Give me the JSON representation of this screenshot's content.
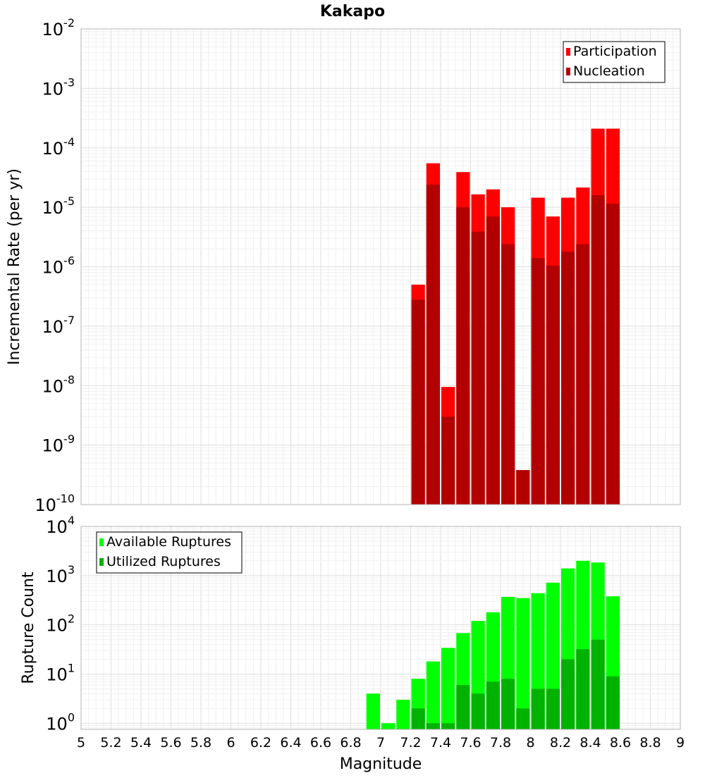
{
  "chart_data": [
    {
      "type": "bar",
      "title": "Kakapo",
      "xlabel": "",
      "ylabel": "Incremental Rate (per yr)",
      "yscale": "log",
      "ylim": [
        1e-10,
        0.01
      ],
      "xlim": [
        5,
        9
      ],
      "y_tick_labels": [
        {
          "base": "10",
          "exp": "-10"
        },
        {
          "base": "10",
          "exp": "-9"
        },
        {
          "base": "10",
          "exp": "-8"
        },
        {
          "base": "10",
          "exp": "-7"
        },
        {
          "base": "10",
          "exp": "-6"
        },
        {
          "base": "10",
          "exp": "-5"
        },
        {
          "base": "10",
          "exp": "-4"
        },
        {
          "base": "10",
          "exp": "-3"
        },
        {
          "base": "10",
          "exp": "-2"
        }
      ],
      "grid": true,
      "legend_position": "top-right",
      "bar_width": 0.1,
      "x": [
        7.25,
        7.35,
        7.45,
        7.55,
        7.65,
        7.75,
        7.85,
        7.95,
        8.05,
        8.15,
        8.25,
        8.35,
        8.45,
        8.55
      ],
      "series": [
        {
          "name": "Participation",
          "color": "#ff0000",
          "values": [
            5e-07,
            5.5e-05,
            9.5e-09,
            3.9e-05,
            1.65e-05,
            2e-05,
            1e-05,
            3.8e-10,
            1.45e-05,
            7e-06,
            1.45e-05,
            2.15e-05,
            0.00021,
            0.00021
          ]
        },
        {
          "name": "Nucleation",
          "color": "#b20000",
          "values": [
            2.8e-07,
            2.4e-05,
            3e-09,
            1e-05,
            3.9e-06,
            7e-06,
            2.4e-06,
            3.8e-10,
            1.4e-06,
            1.05e-06,
            1.8e-06,
            2.4e-06,
            1.6e-05,
            1.15e-05
          ]
        }
      ]
    },
    {
      "type": "bar",
      "title": "",
      "xlabel": "Magnitude",
      "ylabel": "Rupture Count",
      "yscale": "log",
      "ylim": [
        0.75,
        10000
      ],
      "xlim": [
        5,
        9
      ],
      "x_tick_labels": [
        "5",
        "5.2",
        "5.4",
        "5.6",
        "5.8",
        "6",
        "6.2",
        "6.4",
        "6.6",
        "6.8",
        "7",
        "7.2",
        "7.4",
        "7.6",
        "7.8",
        "8",
        "8.2",
        "8.4",
        "8.6",
        "8.8",
        "9"
      ],
      "y_tick_labels": [
        {
          "base": "10",
          "exp": "0"
        },
        {
          "base": "10",
          "exp": "1"
        },
        {
          "base": "10",
          "exp": "2"
        },
        {
          "base": "10",
          "exp": "3"
        },
        {
          "base": "10",
          "exp": "4"
        }
      ],
      "grid": true,
      "legend_position": "top-left",
      "bar_width": 0.1,
      "x": [
        6.95,
        7.05,
        7.15,
        7.25,
        7.35,
        7.45,
        7.55,
        7.65,
        7.75,
        7.85,
        7.95,
        8.05,
        8.15,
        8.25,
        8.35,
        8.45,
        8.55
      ],
      "series": [
        {
          "name": "Available Ruptures",
          "color": "#00ff00",
          "values": [
            4,
            1,
            3,
            8,
            18,
            34,
            68,
            120,
            180,
            370,
            350,
            440,
            720,
            1400,
            2000,
            1850,
            380
          ]
        },
        {
          "name": "Utilized Ruptures",
          "color": "#00b200",
          "values": [
            null,
            null,
            null,
            2,
            1,
            1,
            6,
            4,
            7,
            8,
            2,
            5,
            5,
            20,
            32,
            50,
            9
          ]
        }
      ]
    }
  ]
}
